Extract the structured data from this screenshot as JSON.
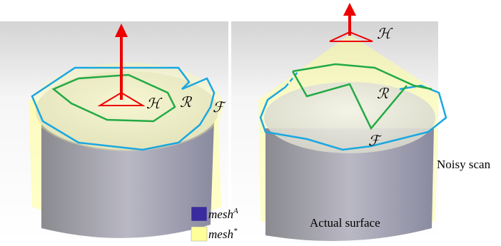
{
  "left_panel": {
    "labels": {
      "h": "ℋ",
      "r": "ℛ",
      "f": "ℱ"
    }
  },
  "right_panel": {
    "labels": {
      "h": "ℋ",
      "r": "ℛ",
      "f": "ℱ",
      "noisy": "Noisy scan",
      "actual": "Actual surface"
    }
  },
  "legend": [
    {
      "name": "mesh",
      "superscript": "A",
      "color": "#3a2c9e"
    },
    {
      "name": "mesh",
      "superscript": "*",
      "color": "#ffff99"
    }
  ]
}
